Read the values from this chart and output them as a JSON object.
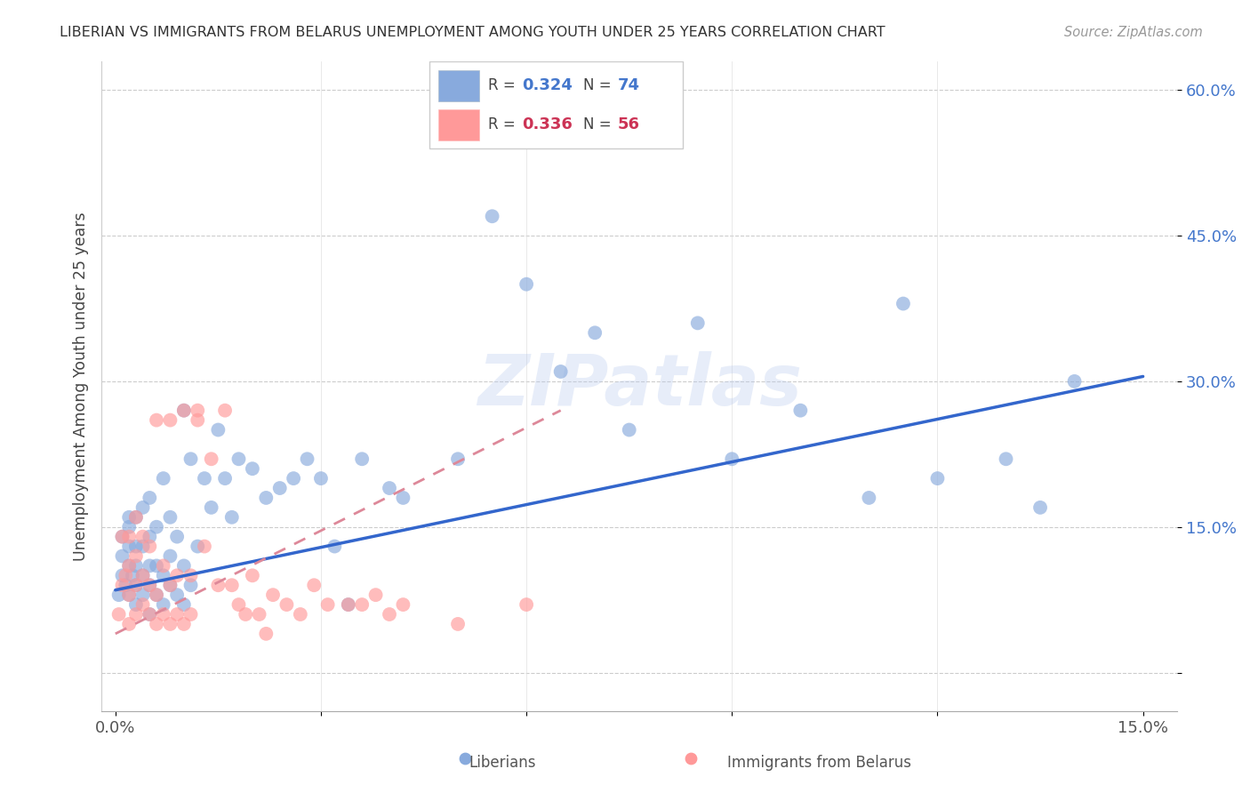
{
  "title": "LIBERIAN VS IMMIGRANTS FROM BELARUS UNEMPLOYMENT AMONG YOUTH UNDER 25 YEARS CORRELATION CHART",
  "source": "Source: ZipAtlas.com",
  "ylabel": "Unemployment Among Youth under 25 years",
  "xlim": [
    -0.002,
    0.155
  ],
  "ylim": [
    -0.04,
    0.63
  ],
  "ytick_vals": [
    0.0,
    0.15,
    0.3,
    0.45,
    0.6
  ],
  "ytick_labels": [
    "",
    "15.0%",
    "30.0%",
    "45.0%",
    "60.0%"
  ],
  "xtick_vals": [
    0.0,
    0.03,
    0.06,
    0.09,
    0.12,
    0.15
  ],
  "xtick_labels": [
    "0.0%",
    "",
    "",
    "",
    "",
    "15.0%"
  ],
  "r1": "0.324",
  "n1": "74",
  "r2": "0.336",
  "n2": "56",
  "color_lib": "#88AADD",
  "color_bel": "#FF9999",
  "color_line_lib": "#3366CC",
  "color_line_bel": "#DD8899",
  "watermark": "ZIPatlas",
  "watermark_color": "#BBCCEE",
  "lib_x": [
    0.0005,
    0.001,
    0.001,
    0.001,
    0.0015,
    0.002,
    0.002,
    0.002,
    0.002,
    0.002,
    0.0025,
    0.003,
    0.003,
    0.003,
    0.003,
    0.003,
    0.004,
    0.004,
    0.004,
    0.004,
    0.005,
    0.005,
    0.005,
    0.005,
    0.005,
    0.006,
    0.006,
    0.006,
    0.007,
    0.007,
    0.007,
    0.008,
    0.008,
    0.008,
    0.009,
    0.009,
    0.01,
    0.01,
    0.01,
    0.011,
    0.011,
    0.012,
    0.013,
    0.014,
    0.015,
    0.016,
    0.017,
    0.018,
    0.02,
    0.022,
    0.024,
    0.026,
    0.028,
    0.03,
    0.032,
    0.034,
    0.036,
    0.04,
    0.042,
    0.05,
    0.055,
    0.06,
    0.065,
    0.07,
    0.075,
    0.085,
    0.09,
    0.1,
    0.11,
    0.115,
    0.12,
    0.13,
    0.135,
    0.14
  ],
  "lib_y": [
    0.08,
    0.1,
    0.12,
    0.14,
    0.09,
    0.08,
    0.11,
    0.13,
    0.15,
    0.16,
    0.1,
    0.07,
    0.09,
    0.11,
    0.13,
    0.16,
    0.08,
    0.1,
    0.13,
    0.17,
    0.06,
    0.09,
    0.11,
    0.14,
    0.18,
    0.08,
    0.11,
    0.15,
    0.07,
    0.1,
    0.2,
    0.09,
    0.12,
    0.16,
    0.08,
    0.14,
    0.07,
    0.11,
    0.27,
    0.09,
    0.22,
    0.13,
    0.2,
    0.17,
    0.25,
    0.2,
    0.16,
    0.22,
    0.21,
    0.18,
    0.19,
    0.2,
    0.22,
    0.2,
    0.13,
    0.07,
    0.22,
    0.19,
    0.18,
    0.22,
    0.47,
    0.4,
    0.31,
    0.35,
    0.25,
    0.36,
    0.22,
    0.27,
    0.18,
    0.38,
    0.2,
    0.22,
    0.17,
    0.3
  ],
  "bel_x": [
    0.0005,
    0.001,
    0.001,
    0.0015,
    0.002,
    0.002,
    0.002,
    0.002,
    0.003,
    0.003,
    0.003,
    0.003,
    0.004,
    0.004,
    0.004,
    0.005,
    0.005,
    0.005,
    0.006,
    0.006,
    0.006,
    0.007,
    0.007,
    0.008,
    0.008,
    0.008,
    0.009,
    0.009,
    0.01,
    0.01,
    0.011,
    0.011,
    0.012,
    0.012,
    0.013,
    0.014,
    0.015,
    0.016,
    0.017,
    0.018,
    0.019,
    0.02,
    0.021,
    0.022,
    0.023,
    0.025,
    0.027,
    0.029,
    0.031,
    0.034,
    0.036,
    0.038,
    0.04,
    0.042,
    0.05,
    0.06
  ],
  "bel_y": [
    0.06,
    0.09,
    0.14,
    0.1,
    0.05,
    0.08,
    0.11,
    0.14,
    0.06,
    0.09,
    0.12,
    0.16,
    0.07,
    0.1,
    0.14,
    0.06,
    0.09,
    0.13,
    0.05,
    0.08,
    0.26,
    0.06,
    0.11,
    0.05,
    0.09,
    0.26,
    0.06,
    0.1,
    0.05,
    0.27,
    0.06,
    0.1,
    0.26,
    0.27,
    0.13,
    0.22,
    0.09,
    0.27,
    0.09,
    0.07,
    0.06,
    0.1,
    0.06,
    0.04,
    0.08,
    0.07,
    0.06,
    0.09,
    0.07,
    0.07,
    0.07,
    0.08,
    0.06,
    0.07,
    0.05,
    0.07
  ],
  "line_lib_x0": 0.0,
  "line_lib_y0": 0.085,
  "line_lib_x1": 0.15,
  "line_lib_y1": 0.305,
  "line_bel_x0": 0.0,
  "line_bel_y0": 0.04,
  "line_bel_x1": 0.065,
  "line_bel_y1": 0.27
}
